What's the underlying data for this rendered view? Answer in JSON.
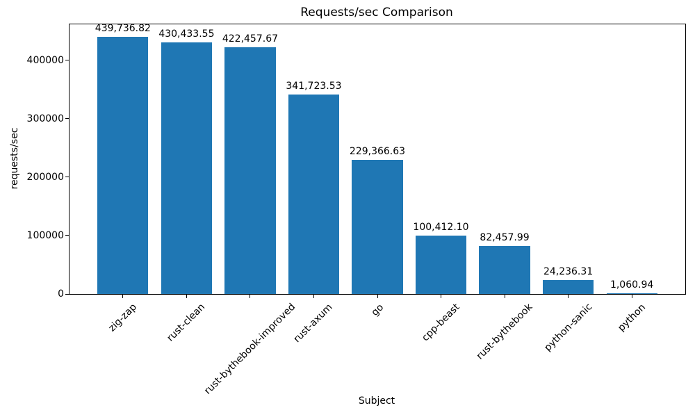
{
  "chart_data": {
    "type": "bar",
    "title": "Requests/sec Comparison",
    "xlabel": "Subject",
    "ylabel": "requests/sec",
    "categories": [
      "zig-zap",
      "rust-clean",
      "rust-bythebook-improved",
      "rust-axum",
      "go",
      "cpp-beast",
      "rust-bythebook",
      "python-sanic",
      "python"
    ],
    "values": [
      439736.82,
      430433.55,
      422457.67,
      341723.53,
      229366.63,
      100412.1,
      82457.99,
      24236.31,
      1060.94
    ],
    "bar_labels": [
      "439,736.82",
      "430,433.55",
      "422,457.67",
      "341,723.53",
      "229,366.63",
      "100,412.10",
      "82,457.99",
      "24,236.31",
      "1,060.94"
    ],
    "ytick_values": [
      0,
      100000,
      200000,
      300000,
      400000
    ],
    "ytick_labels": [
      "0",
      "100000",
      "200000",
      "300000",
      "400000"
    ],
    "ylim": [
      0,
      461723.66
    ],
    "bar_color": "#1f77b4",
    "axis_color": "#000000",
    "background_color": "#ffffff",
    "grid": false,
    "legend": "none",
    "xtick_rotation_deg": 45
  }
}
